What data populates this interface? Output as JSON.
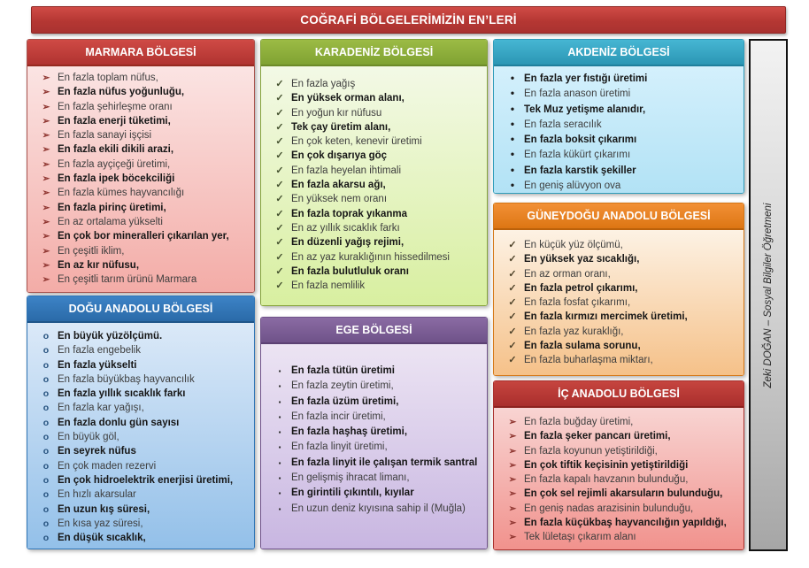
{
  "title": {
    "text": "COĞRAFİ BÖLGELERİMİZİN EN’LERİ"
  },
  "credit": {
    "text": "Zeki DOĞAN – Sosyal Bilgiler Öğretmeni"
  },
  "colors": {
    "title_bar": "#b53733",
    "marmara_header": "#b83732",
    "marmara_body": "#f6c3bf",
    "dogu_anadolu_header": "#2e74b5",
    "dogu_anadolu_body": "#b4d3f1",
    "karadeniz_header": "#8aab3a",
    "karadeniz_body": "#e3f3c2",
    "ege_header": "#7a5c96",
    "ege_body": "#d8c9e9",
    "akdeniz_header": "#35a6c4",
    "akdeniz_body": "#c3e9f9",
    "guneydogu_header": "#e8821f",
    "guneydogu_body": "#f9d9b4",
    "ic_anadolu_header": "#b5352f",
    "ic_anadolu_body": "#f4aba6",
    "credit_strip": "#d0d0d0"
  },
  "regions": [
    {
      "name": "MARMARA BÖLGESİ",
      "bullet": "➢",
      "bullet_icon": "arrow-bullet-icon",
      "items": [
        {
          "text": "En fazla toplam nüfus,",
          "bold": false
        },
        {
          "text": "En fazla nüfus yoğunluğu,",
          "bold": true
        },
        {
          "text": "En fazla şehirleşme oranı",
          "bold": false
        },
        {
          "text": "En fazla enerji tüketimi,",
          "bold": true
        },
        {
          "text": "En fazla sanayi işçisi",
          "bold": false
        },
        {
          "text": "En fazla ekili dikili arazi,",
          "bold": true
        },
        {
          "text": "En fazla ayçiçeği üretimi,",
          "bold": false
        },
        {
          "text": "En fazla ipek böcekciliği",
          "bold": true
        },
        {
          "text": "En fazla kümes hayvancılığı",
          "bold": false
        },
        {
          "text": "En fazla pirinç üretimi,",
          "bold": true
        },
        {
          "text": "En az ortalama yükselti",
          "bold": false
        },
        {
          "text": "En çok bor mineralleri çıkarılan yer,",
          "bold": true
        },
        {
          "text": "En çeşitli iklim,",
          "bold": false
        },
        {
          "text": "En az kır nüfusu,",
          "bold": true
        },
        {
          "text": "En çeşitli tarım ürünü Marmara",
          "bold": false
        }
      ]
    },
    {
      "name": "DOĞU ANADOLU BÖLGESİ",
      "bullet": "o",
      "bullet_icon": "circle-bullet-icon",
      "items": [
        {
          "text": "En büyük yüzölçümü.",
          "bold": true
        },
        {
          "text": "En fazla engebelik",
          "bold": false
        },
        {
          "text": "En fazla yükselti",
          "bold": true
        },
        {
          "text": "En fazla büyükbaş hayvancılık",
          "bold": false
        },
        {
          "text": "En fazla yıllık sıcaklık farkı",
          "bold": true
        },
        {
          "text": "En fazla kar yağışı,",
          "bold": false
        },
        {
          "text": "En fazla donlu gün sayısı",
          "bold": true
        },
        {
          "text": "En büyük göl,",
          "bold": false
        },
        {
          "text": "En seyrek nüfus",
          "bold": true
        },
        {
          "text": "En çok maden rezervi",
          "bold": false
        },
        {
          "text": "En çok hidroelektrik enerjisi üretimi,",
          "bold": true
        },
        {
          "text": "En hızlı akarsular",
          "bold": false
        },
        {
          "text": "En uzun kış süresi,",
          "bold": true
        },
        {
          "text": "En kısa yaz süresi,",
          "bold": false
        },
        {
          "text": "En düşük sıcaklık,",
          "bold": true
        }
      ]
    },
    {
      "name": "KARADENİZ BÖLGESİ",
      "bullet": "✓",
      "bullet_icon": "checkmark-bullet-icon",
      "items": [
        {
          "text": "En fazla yağış",
          "bold": false
        },
        {
          "text": "En yüksek orman alanı,",
          "bold": true
        },
        {
          "text": "En yoğun kır nüfusu",
          "bold": false
        },
        {
          "text": "Tek çay üretim alanı,",
          "bold": true
        },
        {
          "text": "En çok keten, kenevir üretimi",
          "bold": false
        },
        {
          "text": "En çok dışarıya göç",
          "bold": true
        },
        {
          "text": "En fazla heyelan ihtimali",
          "bold": false
        },
        {
          "text": "En fazla akarsu ağı,",
          "bold": true
        },
        {
          "text": "En yüksek nem oranı",
          "bold": false
        },
        {
          "text": "En fazla toprak yıkanma",
          "bold": true
        },
        {
          "text": "En az yıllık sıcaklık farkı",
          "bold": false
        },
        {
          "text": "En düzenli yağış rejimi,",
          "bold": true
        },
        {
          "text": "En az yaz kuraklığının hissedilmesi",
          "bold": false
        },
        {
          "text": "En fazla bulutluluk oranı",
          "bold": true
        },
        {
          "text": "En fazla nemlilik",
          "bold": false
        }
      ]
    },
    {
      "name": "EGE BÖLGESİ",
      "bullet": "▪",
      "bullet_icon": "square-bullet-icon",
      "items": [
        {
          "text": "En fazla tütün üretimi",
          "bold": true
        },
        {
          "text": "En fazla zeytin üretimi,",
          "bold": false
        },
        {
          "text": "En fazla üzüm üretimi,",
          "bold": true
        },
        {
          "text": "En fazla incir üretimi,",
          "bold": false
        },
        {
          "text": "En fazla haşhaş üretimi,",
          "bold": true
        },
        {
          "text": "En fazla linyit üretimi,",
          "bold": false
        },
        {
          "text": "En fazla linyit ile çalışan termik santral",
          "bold": true
        },
        {
          "text": "En gelişmiş ihracat limanı,",
          "bold": false
        },
        {
          "text": "En girintili çıkıntılı, kıyılar",
          "bold": true
        },
        {
          "text": "En uzun deniz kıyısına sahip il (Muğla)",
          "bold": false
        }
      ]
    },
    {
      "name": "AKDENİZ BÖLGESİ",
      "bullet": "•",
      "bullet_icon": "dot-bullet-icon",
      "items": [
        {
          "text": "En fazla yer fıstığı üretimi",
          "bold": true
        },
        {
          "text": "En fazla anason üretimi",
          "bold": false
        },
        {
          "text": "Tek Muz yetişme alanıdır,",
          "bold": true
        },
        {
          "text": "En fazla seracılık",
          "bold": false
        },
        {
          "text": "En fazla boksit çıkarımı",
          "bold": true
        },
        {
          "text": "En fazla kükürt çıkarımı",
          "bold": false
        },
        {
          "text": "En fazla karstik şekiller",
          "bold": true
        },
        {
          "text": "En geniş alüvyon ova",
          "bold": false
        }
      ]
    },
    {
      "name": "GÜNEYDOĞU ANADOLU BÖLGESİ",
      "bullet": "✓",
      "bullet_icon": "checkmark-bullet-icon",
      "items": [
        {
          "text": "En küçük yüz ölçümü,",
          "bold": false
        },
        {
          "text": "En yüksek yaz sıcaklığı,",
          "bold": true
        },
        {
          "text": "En az orman oranı,",
          "bold": false
        },
        {
          "text": "En fazla petrol çıkarımı,",
          "bold": true
        },
        {
          "text": "En fazla fosfat çıkarımı,",
          "bold": false
        },
        {
          "text": "En fazla kırmızı mercimek üretimi,",
          "bold": true
        },
        {
          "text": "En fazla yaz kuraklığı,",
          "bold": false
        },
        {
          "text": "En fazla sulama sorunu,",
          "bold": true
        },
        {
          "text": "En fazla buharlaşma miktarı,",
          "bold": false
        }
      ]
    },
    {
      "name": "İÇ ANADOLU BÖLGESİ",
      "bullet": "➢",
      "bullet_icon": "arrow-bullet-icon",
      "items": [
        {
          "text": "En fazla buğday üretimi,",
          "bold": false
        },
        {
          "text": "En fazla şeker pancarı üretimi,",
          "bold": true
        },
        {
          "text": "En fazla koyunun yetiştirildiği,",
          "bold": false
        },
        {
          "text": "En çok tiftik keçisinin yetiştirildiği",
          "bold": true
        },
        {
          "text": "En fazla kapalı havzanın bulunduğu,",
          "bold": false
        },
        {
          "text": "En çok sel rejimli akarsuların bulunduğu,",
          "bold": true
        },
        {
          "text": "En geniş nadas arazisinin bulunduğu,",
          "bold": false
        },
        {
          "text": "En fazla küçükbaş hayvancılığın yapıldığı,",
          "bold": true
        },
        {
          "text": "Tek lületaşı çıkarım alanı",
          "bold": false
        }
      ]
    }
  ]
}
